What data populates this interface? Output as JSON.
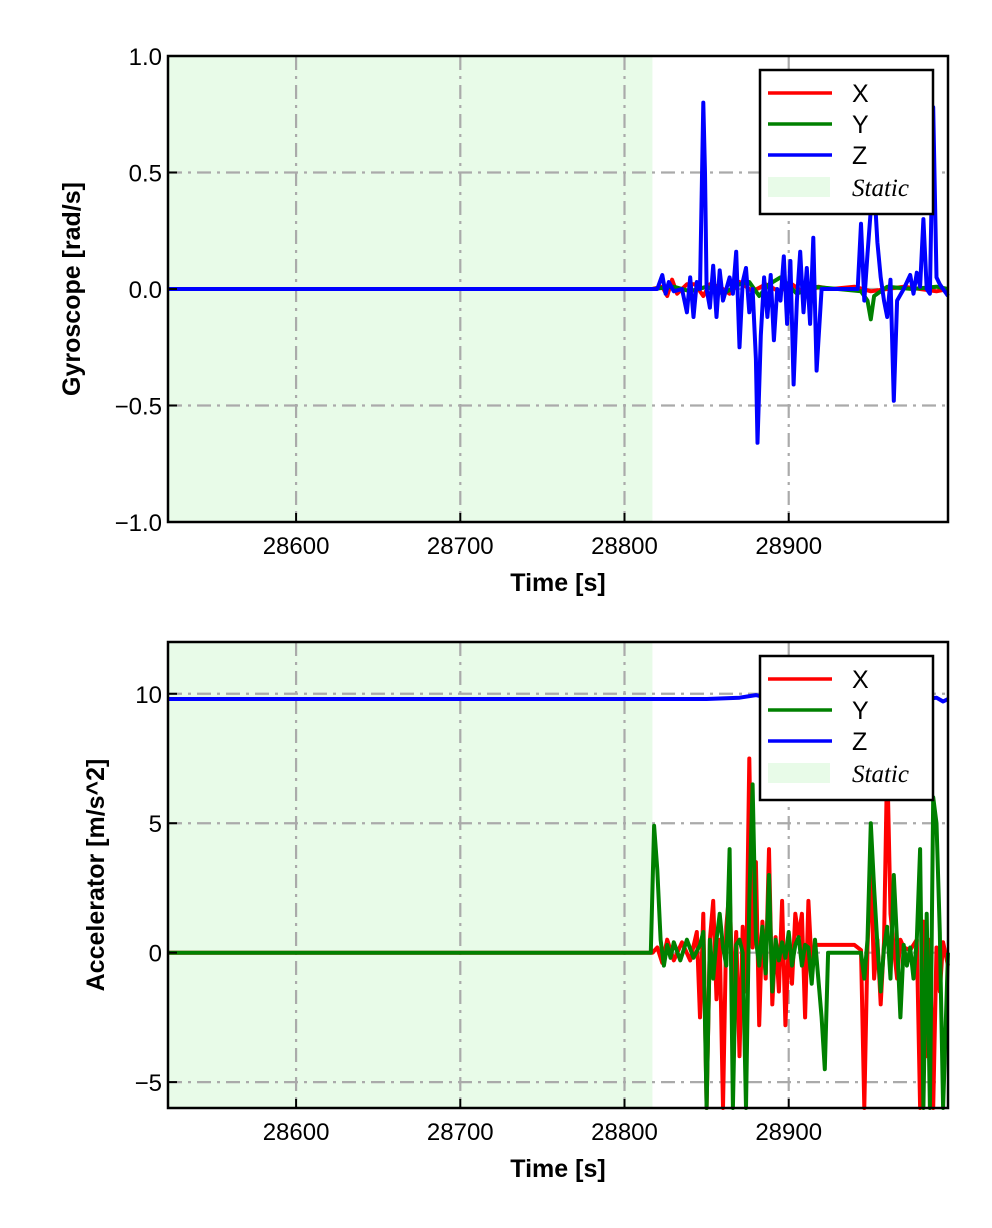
{
  "chart_data": [
    {
      "type": "line",
      "xlabel": "Time [s]",
      "ylabel": "Gyroscope [rad/s]",
      "xlim": [
        28522,
        28997
      ],
      "ylim": [
        -1.0,
        1.0
      ],
      "xticks": [
        28600,
        28700,
        28800,
        28900
      ],
      "xtick_labels": [
        "28600",
        "28700",
        "28800",
        "28900"
      ],
      "yticks": [
        -1.0,
        -0.5,
        0.0,
        0.5,
        1.0
      ],
      "ytick_labels": [
        "−1.0",
        "−0.5",
        "0.0",
        "0.5",
        "1.0"
      ],
      "grid": true,
      "legend_position": "top-right",
      "static_region": {
        "label": "Static",
        "x0": 28522,
        "x1": 28817,
        "color": "#e8fbe8"
      },
      "series": [
        {
          "name": "X",
          "color": "#ff0000",
          "x": [
            28522,
            28817,
            28823,
            28826,
            28829,
            28832,
            28838,
            28843,
            28848,
            28852,
            28858,
            28864,
            28870,
            28878,
            28886,
            28894,
            28902,
            28910,
            28918,
            28926,
            28940,
            28950,
            28960,
            28970,
            28980,
            28990,
            28997
          ],
          "y": [
            0.0,
            0.0,
            0.01,
            -0.03,
            0.04,
            -0.02,
            0.02,
            0.02,
            -0.03,
            0.02,
            0.01,
            -0.02,
            0.03,
            -0.01,
            0.02,
            -0.01,
            0.02,
            -0.02,
            0.01,
            0.0,
            0.01,
            -0.01,
            0.0,
            0.01,
            0.0,
            -0.01,
            0.0
          ]
        },
        {
          "name": "Y",
          "color": "#008000",
          "x": [
            28522,
            28817,
            28830,
            28840,
            28850,
            28860,
            28870,
            28876,
            28882,
            28888,
            28895,
            28905,
            28915,
            28930,
            28944,
            28948,
            28950,
            28952,
            28960,
            28975,
            28990,
            28997
          ],
          "y": [
            0.0,
            0.0,
            0.01,
            -0.01,
            0.01,
            -0.02,
            0.02,
            0.03,
            -0.03,
            0.02,
            0.05,
            -0.02,
            0.01,
            0.0,
            -0.01,
            -0.05,
            -0.13,
            -0.03,
            0.01,
            0.0,
            0.01,
            0.0
          ]
        },
        {
          "name": "Z",
          "color": "#0000ff",
          "x": [
            28522,
            28820,
            28823,
            28825,
            28827,
            28830,
            28835,
            28838,
            28840,
            28842,
            28844,
            28846,
            28848,
            28849,
            28850,
            28852,
            28854,
            28856,
            28858,
            28860,
            28862,
            28864,
            28866,
            28868,
            28870,
            28872,
            28874,
            28876,
            28878,
            28880,
            28881,
            28883,
            28885,
            28887,
            28889,
            28891,
            28893,
            28895,
            28897,
            28899,
            28901,
            28903,
            28905,
            28907,
            28909,
            28911,
            28913,
            28915,
            28917,
            28920,
            28925,
            28935,
            28942,
            28944,
            28946,
            28948,
            28950,
            28952,
            28954,
            28956,
            28958,
            28960,
            28962,
            28964,
            28966,
            28970,
            28974,
            28976,
            28978,
            28980,
            28982,
            28984,
            28986,
            28988,
            28990,
            28992,
            28994,
            28997
          ],
          "y": [
            0.0,
            0.0,
            0.06,
            -0.02,
            0.03,
            -0.01,
            0.0,
            -0.1,
            0.05,
            -0.12,
            0.03,
            0.0,
            0.8,
            0.5,
            0.0,
            -0.08,
            0.1,
            -0.12,
            0.08,
            -0.05,
            0.0,
            0.05,
            -0.02,
            0.16,
            -0.25,
            0.03,
            0.09,
            -0.1,
            0.0,
            -0.3,
            -0.66,
            -0.2,
            0.05,
            -0.12,
            0.06,
            -0.22,
            0.0,
            -0.05,
            0.14,
            -0.15,
            0.12,
            -0.41,
            -0.05,
            0.16,
            -0.1,
            0.09,
            -0.15,
            0.22,
            -0.35,
            0.0,
            0.0,
            0.0,
            0.0,
            0.28,
            -0.05,
            0.15,
            0.34,
            0.45,
            0.2,
            0.05,
            -0.05,
            -0.12,
            0.04,
            -0.48,
            -0.05,
            0.0,
            0.06,
            -0.02,
            0.07,
            0.01,
            0.3,
            0.0,
            -0.02,
            0.78,
            0.05,
            0.02,
            0.0,
            -0.03
          ]
        }
      ]
    },
    {
      "type": "line",
      "xlabel": "Time [s]",
      "ylabel": "Accelerator [m/s^2]",
      "xlim": [
        28522,
        28997
      ],
      "ylim": [
        -6.0,
        12.0
      ],
      "xticks": [
        28600,
        28700,
        28800,
        28900
      ],
      "xtick_labels": [
        "28600",
        "28700",
        "28800",
        "28900"
      ],
      "yticks": [
        -5,
        0,
        5,
        10
      ],
      "ytick_labels": [
        "−5",
        "0",
        "5",
        "10"
      ],
      "grid": true,
      "legend_position": "top-right",
      "static_region": {
        "label": "Static",
        "x0": 28522,
        "x1": 28817,
        "color": "#e8fbe8"
      },
      "series": [
        {
          "name": "X",
          "color": "#ff0000",
          "x": [
            28522,
            28817,
            28820,
            28823,
            28826,
            28830,
            28835,
            28840,
            28844,
            28846,
            28848,
            28850,
            28852,
            28854,
            28856,
            28858,
            28860,
            28862,
            28864,
            28866,
            28868,
            28870,
            28872,
            28874,
            28876,
            28878,
            28880,
            28882,
            28884,
            28886,
            28888,
            28890,
            28892,
            28894,
            28896,
            28898,
            28900,
            28902,
            28904,
            28906,
            28908,
            28910,
            28912,
            28914,
            28916,
            28920,
            28930,
            28940,
            28944,
            28946,
            28948,
            28950,
            28952,
            28954,
            28956,
            28958,
            28960,
            28962,
            28964,
            28966,
            28968,
            28970,
            28974,
            28978,
            28980,
            28982,
            28984,
            28986,
            28988,
            28990,
            28992,
            28994,
            28997
          ],
          "y": [
            0.0,
            0.0,
            0.2,
            -0.4,
            0.5,
            -0.3,
            0.4,
            -0.3,
            0.8,
            -2.5,
            1.5,
            -6.0,
            0.5,
            2.0,
            -1.8,
            0.5,
            -6.0,
            1.0,
            2.5,
            -2.2,
            0.8,
            -4.0,
            1.0,
            -1.5,
            7.5,
            0.2,
            3.5,
            -2.8,
            1.2,
            -1.0,
            4.0,
            -2.0,
            0.6,
            -1.5,
            2.0,
            -2.8,
            0.3,
            -1.2,
            1.5,
            0.6,
            1.5,
            -2.5,
            2.0,
            -0.5,
            0.3,
            0.3,
            0.3,
            0.3,
            0.1,
            -6.0,
            0.2,
            3.5,
            -1.0,
            0.5,
            -2.0,
            0.4,
            7.5,
            1.5,
            0.2,
            -1.0,
            0.5,
            0.2,
            0.1,
            0.5,
            -6.0,
            1.2,
            -4.0,
            0.5,
            -6.0,
            0.2,
            -1.5,
            0.4,
            -0.5
          ]
        },
        {
          "name": "Y",
          "color": "#008000",
          "x": [
            28522,
            28816,
            28818,
            28820,
            28822,
            28824,
            28826,
            28828,
            28830,
            28834,
            28838,
            28842,
            28846,
            28848,
            28850,
            28852,
            28854,
            28856,
            28858,
            28860,
            28862,
            28864,
            28866,
            28868,
            28870,
            28872,
            28874,
            28876,
            28878,
            28880,
            28882,
            28884,
            28886,
            28888,
            28890,
            28892,
            28894,
            28896,
            28898,
            28900,
            28902,
            28904,
            28906,
            28908,
            28910,
            28912,
            28914,
            28916,
            28918,
            28920,
            28922,
            28924,
            28930,
            28944,
            28946,
            28948,
            28950,
            28952,
            28954,
            28956,
            28958,
            28960,
            28962,
            28964,
            28966,
            28968,
            28970,
            28972,
            28974,
            28976,
            28978,
            28980,
            28982,
            28984,
            28986,
            28988,
            28990,
            28992,
            28994,
            28997
          ],
          "y": [
            0.0,
            0.0,
            4.9,
            3.2,
            0.5,
            -0.5,
            0.3,
            -0.2,
            0.4,
            -0.3,
            0.5,
            -0.2,
            0.3,
            0.8,
            -6.0,
            0.5,
            -1.0,
            0.5,
            1.5,
            0.2,
            -0.5,
            4.0,
            -6.0,
            0.3,
            0.5,
            0.0,
            -6.0,
            2.0,
            6.5,
            0.5,
            -0.5,
            1.0,
            -0.8,
            3.0,
            -1.5,
            0.5,
            -0.3,
            0.4,
            -0.2,
            0.8,
            -0.5,
            0.3,
            0.6,
            -0.5,
            0.3,
            0.2,
            -1.2,
            0.5,
            -1.0,
            -2.5,
            -4.5,
            0.0,
            0.0,
            0.0,
            -1.0,
            0.5,
            5.0,
            2.5,
            0.3,
            -1.5,
            0.2,
            1.0,
            -1.0,
            3.0,
            0.4,
            -2.5,
            0.3,
            -0.5,
            0.2,
            -1.0,
            0.5,
            4.0,
            -6.0,
            1.5,
            -6.0,
            6.0,
            5.0,
            0.8,
            -6.0,
            0.0
          ]
        },
        {
          "name": "Z",
          "color": "#0000ff",
          "x": [
            28522,
            28600,
            28700,
            28800,
            28830,
            28850,
            28870,
            28880,
            28890,
            28900,
            28920,
            28940,
            28950,
            28960,
            28975,
            28985,
            28990,
            28994,
            28997
          ],
          "y": [
            9.8,
            9.8,
            9.8,
            9.8,
            9.8,
            9.8,
            9.85,
            9.95,
            9.8,
            9.75,
            9.8,
            9.8,
            9.8,
            9.8,
            9.8,
            9.8,
            9.85,
            9.7,
            9.8
          ]
        }
      ]
    }
  ]
}
